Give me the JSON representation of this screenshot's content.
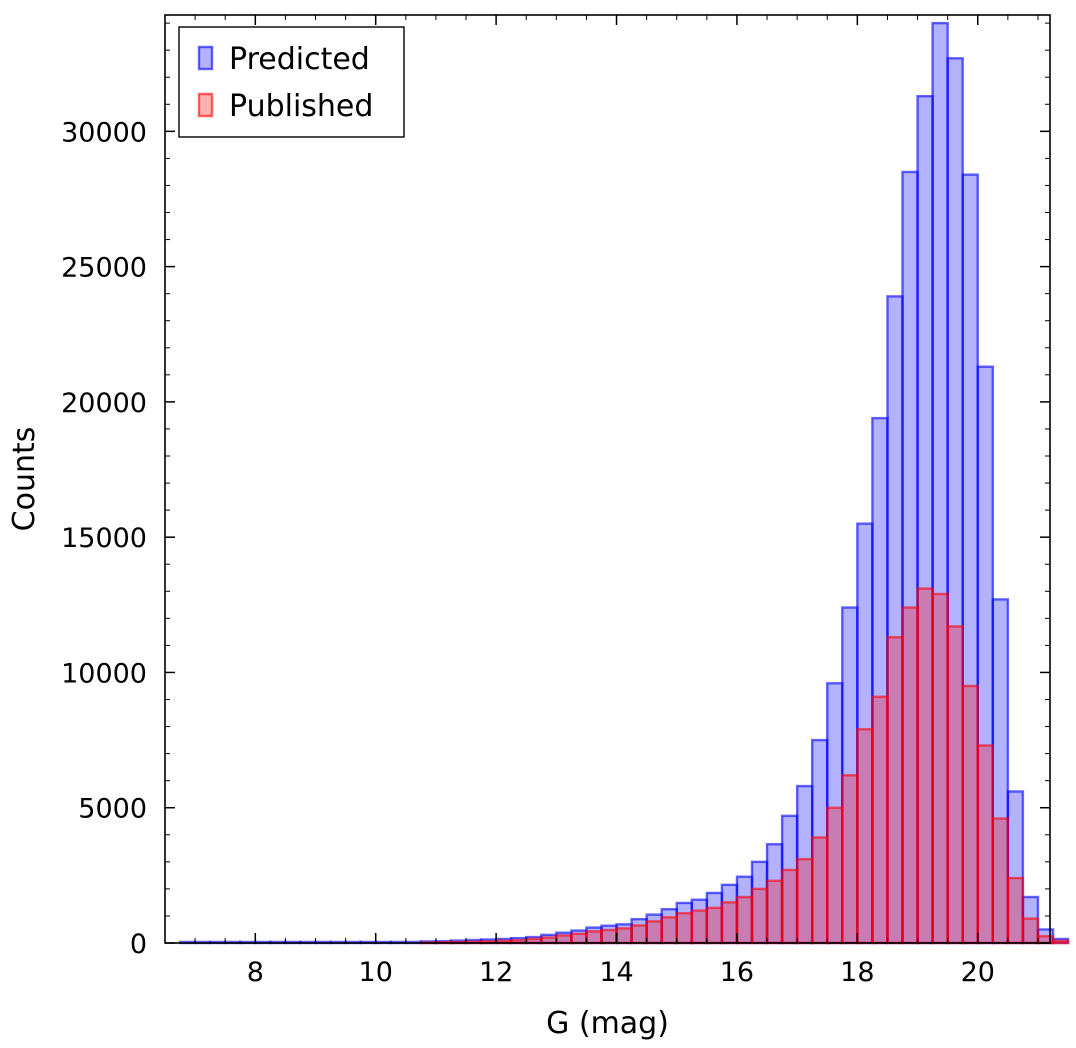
{
  "chart_data": {
    "type": "bar",
    "subtype": "overlaid-histogram",
    "title": "",
    "xlabel": "G (mag)",
    "ylabel": "Counts",
    "xlim": [
      6.5,
      21.2
    ],
    "ylim": [
      0,
      34300
    ],
    "xticks": [
      8,
      10,
      12,
      14,
      16,
      18,
      20
    ],
    "xtick_labels": [
      "8",
      "10",
      "12",
      "14",
      "16",
      "18",
      "20"
    ],
    "yticks": [
      0,
      5000,
      10000,
      15000,
      20000,
      25000,
      30000
    ],
    "ytick_labels": [
      "0",
      "5000",
      "10000",
      "15000",
      "20000",
      "25000",
      "30000"
    ],
    "bin_start": 6.75,
    "bin_width": 0.25,
    "grid": false,
    "legend_position": "top-left",
    "series": [
      {
        "name": "Predicted",
        "color": "#0000ff",
        "values": [
          40,
          40,
          40,
          40,
          40,
          40,
          40,
          40,
          40,
          40,
          40,
          40,
          40,
          40,
          40,
          40,
          60,
          70,
          90,
          110,
          130,
          150,
          180,
          220,
          300,
          380,
          460,
          570,
          640,
          690,
          880,
          1050,
          1250,
          1480,
          1600,
          1850,
          2150,
          2450,
          3000,
          3650,
          4700,
          5800,
          7500,
          9600,
          12400,
          15500,
          19400,
          23900,
          28500,
          31300,
          34000,
          32700,
          28400,
          21300,
          12700,
          5600,
          1700,
          500,
          150
        ]
      },
      {
        "name": "Published",
        "color": "#ff0000",
        "values": [
          0,
          0,
          0,
          0,
          0,
          0,
          0,
          0,
          0,
          0,
          0,
          0,
          0,
          0,
          0,
          0,
          20,
          30,
          40,
          50,
          60,
          80,
          100,
          150,
          200,
          280,
          340,
          430,
          480,
          540,
          650,
          800,
          950,
          1100,
          1200,
          1300,
          1500,
          1700,
          2000,
          2300,
          2700,
          3100,
          3900,
          5000,
          6200,
          7900,
          9100,
          11300,
          12400,
          13100,
          12900,
          11700,
          9500,
          7300,
          4600,
          2400,
          900,
          250,
          80
        ]
      }
    ]
  }
}
